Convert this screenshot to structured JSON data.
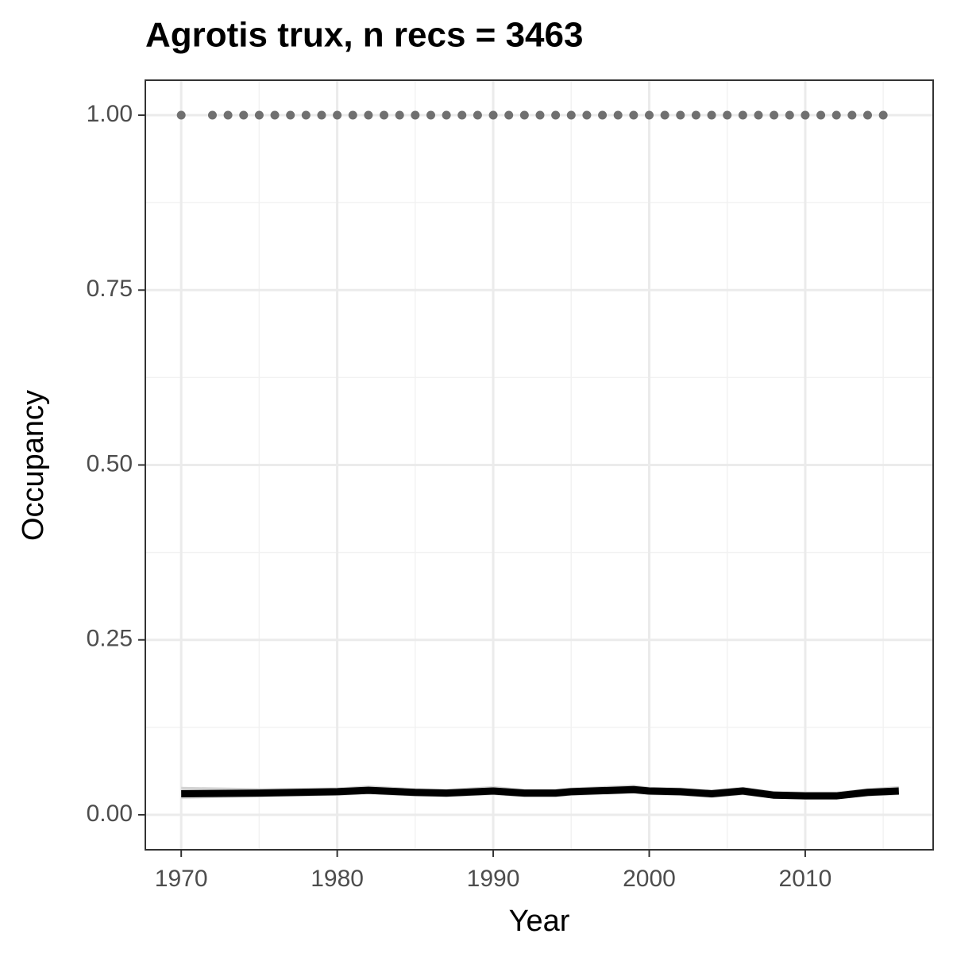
{
  "chart_data": {
    "type": "line",
    "title": "Agrotis trux, n recs = 3463",
    "x_label": "Year",
    "y_label": "Occupancy",
    "xlim": [
      1967.7,
      2018.2
    ],
    "ylim": [
      -0.05,
      1.05
    ],
    "xticks": [
      1970,
      1980,
      1990,
      2000,
      2010
    ],
    "xminor": [
      1975,
      1985,
      1995,
      2005,
      2015
    ],
    "yticks": [
      {
        "value": 0,
        "label": "0.00"
      },
      {
        "value": 0.25,
        "label": "0.25"
      },
      {
        "value": 0.5,
        "label": "0.50"
      },
      {
        "value": 0.75,
        "label": "0.75"
      },
      {
        "value": 1,
        "label": "1.00"
      }
    ],
    "yminor": [
      0.125,
      0.375,
      0.625,
      0.875
    ],
    "grid": true,
    "x": [
      1970,
      1975,
      1980,
      1982,
      1985,
      1987,
      1990,
      1992,
      1994,
      1995,
      1999,
      2000,
      2002,
      2004,
      2006,
      2008,
      2010,
      2012,
      2014,
      2016
    ],
    "values": [
      0.03,
      0.031,
      0.033,
      0.035,
      0.032,
      0.031,
      0.034,
      0.031,
      0.031,
      0.033,
      0.036,
      0.034,
      0.033,
      0.03,
      0.034,
      0.028,
      0.027,
      0.027,
      0.032,
      0.034
    ],
    "upper": [
      0.04,
      0.038,
      0.039,
      0.042,
      0.038,
      0.037,
      0.041,
      0.037,
      0.037,
      0.039,
      0.043,
      0.04,
      0.039,
      0.036,
      0.04,
      0.034,
      0.033,
      0.033,
      0.038,
      0.041
    ],
    "lower": [
      0.023,
      0.025,
      0.027,
      0.029,
      0.026,
      0.025,
      0.028,
      0.025,
      0.025,
      0.027,
      0.03,
      0.028,
      0.027,
      0.024,
      0.028,
      0.023,
      0.022,
      0.022,
      0.026,
      0.028
    ],
    "color": "#000000",
    "ribbon_color": "#d3d3d3",
    "points_x": [
      1970,
      1972,
      1973,
      1974,
      1975,
      1976,
      1977,
      1978,
      1979,
      1980,
      1981,
      1982,
      1983,
      1984,
      1985,
      1986,
      1987,
      1988,
      1989,
      1990,
      1991,
      1992,
      1993,
      1994,
      1995,
      1996,
      1997,
      1998,
      1999,
      2000,
      2001,
      2002,
      2003,
      2004,
      2005,
      2006,
      2007,
      2008,
      2009,
      2010,
      2011,
      2012,
      2013,
      2014,
      2015
    ],
    "points_values": [
      1,
      1,
      1,
      1,
      1,
      1,
      1,
      1,
      1,
      1,
      1,
      1,
      1,
      1,
      1,
      1,
      1,
      1,
      1,
      1,
      1,
      1,
      1,
      1,
      1,
      1,
      1,
      1,
      1,
      1,
      1,
      1,
      1,
      1,
      1,
      1,
      1,
      1,
      1,
      1,
      1,
      1,
      1,
      1,
      1
    ],
    "points_color": "#707070"
  }
}
